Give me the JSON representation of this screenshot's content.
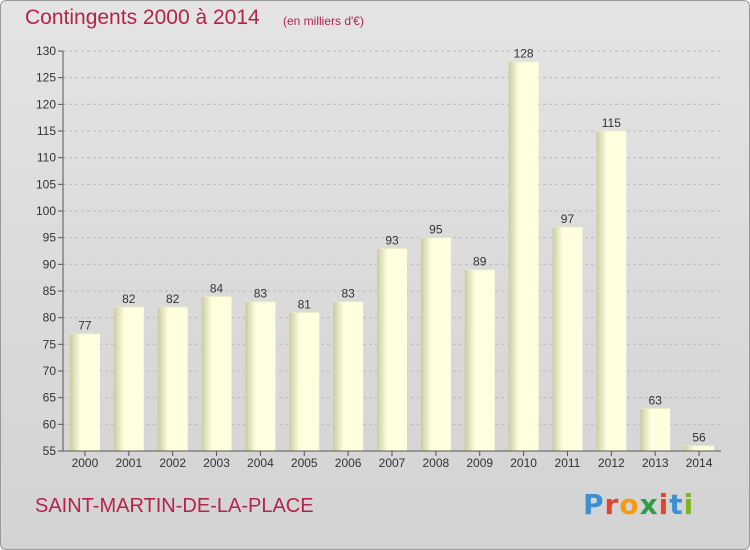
{
  "header": {
    "title": "Contingents 2000 à 2014",
    "unit": "(en milliers d'€)"
  },
  "footer": {
    "place_name": "SAINT-MARTIN-DE-LA-PLACE",
    "logo_text": "Proxiti",
    "logo_colors": [
      "#3c8fd2",
      "#e2452e",
      "#f39c12",
      "#2e9e47",
      "#e2452e",
      "#3c8fd2",
      "#7fb321"
    ]
  },
  "colors": {
    "title": "#b5234b",
    "bar_light": "#ffffe0",
    "bar_dark": "#cbcba0",
    "axis": "#555555"
  },
  "chart_data": {
    "type": "bar",
    "title": "Contingents 2000 à 2014",
    "subtitle": "(en milliers d'€)",
    "xlabel": "",
    "ylabel": "",
    "categories": [
      "2000",
      "2001",
      "2002",
      "2003",
      "2004",
      "2005",
      "2006",
      "2007",
      "2008",
      "2009",
      "2010",
      "2011",
      "2012",
      "2013",
      "2014"
    ],
    "values": [
      77,
      82,
      82,
      84,
      83,
      81,
      83,
      93,
      95,
      89,
      128,
      97,
      115,
      63,
      56
    ],
    "data_labels": [
      "77",
      "82",
      "82",
      "84",
      "83",
      "81",
      "83",
      "93",
      "95",
      "89",
      "128",
      "97",
      "115",
      "63",
      "56"
    ],
    "ylim": [
      55,
      130
    ],
    "yticks": [
      55,
      60,
      65,
      70,
      75,
      80,
      85,
      90,
      95,
      100,
      105,
      110,
      115,
      120,
      125,
      130
    ],
    "grid": "horizontal dashed",
    "legend": "none"
  }
}
